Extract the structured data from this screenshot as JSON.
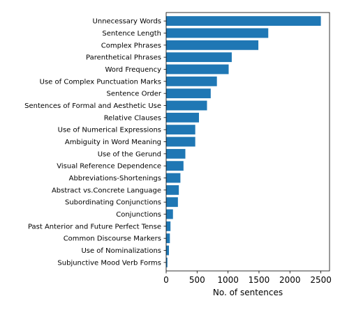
{
  "chart_data": {
    "type": "bar",
    "orientation": "horizontal",
    "categories": [
      "Unnecessary Words",
      "Sentence Length",
      "Complex Phrases",
      "Parenthetical Phrases",
      "Word Frequency",
      "Use of Complex Punctuation Marks",
      "Sentence Order",
      "Sentences of Formal and Aesthetic Use",
      "Relative Clauses",
      "Use of Numerical Expressions",
      "Ambiguity in Word Meaning",
      "Use of the Gerund",
      "Visual Reference Dependence",
      "Abbreviations-Shortenings",
      "Abstract vs.Concrete Language",
      "Subordinating Conjunctions",
      "Conjunctions",
      "Past Anterior and Future Perfect Tense",
      "Common Discourse Markers",
      "Use of Nominalizations",
      "Subjunctive Mood Verb Forms"
    ],
    "values": [
      2500,
      1650,
      1490,
      1060,
      1010,
      820,
      720,
      660,
      530,
      470,
      470,
      310,
      280,
      230,
      205,
      190,
      110,
      70,
      60,
      45,
      20
    ],
    "title": "",
    "xlabel": "No. of sentences",
    "ylabel": "",
    "xlim": [
      0,
      2640
    ],
    "xticks": [
      0,
      500,
      1000,
      1500,
      2000,
      2500
    ],
    "bar_color": "#1f77b4",
    "grid": false
  }
}
